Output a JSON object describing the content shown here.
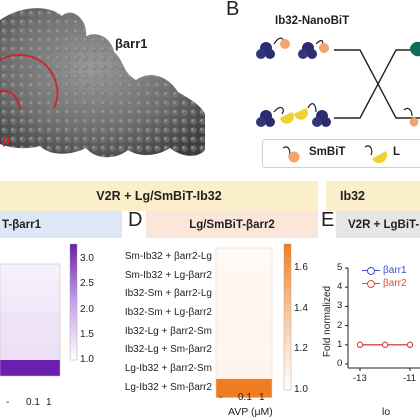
{
  "panels": {
    "b": "B",
    "d": "D",
    "e": "E"
  },
  "panel_a": {
    "protein_label": "βarr1",
    "partial_label": "p"
  },
  "panel_b": {
    "title": "Ib32-NanoBiT",
    "legend_smbit": "SmBiT",
    "legend_lg_partial": "L"
  },
  "bands": {
    "left": "V2R + Lg/SmBiT-Ib32",
    "right": "Ib32"
  },
  "subbands": {
    "c": "T-βarr1",
    "d": "Lg/SmBiT-βarr2",
    "e": "V2R + LgBiT-"
  },
  "colors": {
    "band": "#fbeecb",
    "sub_c": "#dde7f5",
    "sub_d": "#fbe7d9",
    "sub_e": "#e6e6e6",
    "purple": "#6a1fb0",
    "orange": "#ef7d22",
    "series_blue": "#3d4fd0",
    "series_red": "#e5463e"
  },
  "heatmap_c": {
    "colorbar_ticks": [
      "3.0",
      "2.5",
      "2.0",
      "1.5",
      "1.0"
    ],
    "x_ticks": [
      "-",
      "0.1",
      "1"
    ],
    "colorbar_range": [
      1.0,
      3.3
    ]
  },
  "heatmap_d": {
    "row_labels": [
      "Sm-Ib32 + βarr2-Lg",
      "Sm-Ib32 + Lg-βarr2",
      "Ib32-Sm + βarr2-Lg",
      "Ib32-Sm + Lg-βarr2",
      "Ib32-Lg + βarr2-Sm",
      "Ib32-Lg + Sm-βarr2",
      "Lg-Ib32 + βarr2-Sm",
      "Lg-Ib32 + Sm-βarr2"
    ],
    "x_ticks": [
      "-",
      "0.1",
      "1"
    ],
    "x_title": "AVP (μM)",
    "colorbar_ticks": [
      "1.6",
      "1.4",
      "1.2",
      "1.0"
    ],
    "colorbar_range": [
      1.0,
      1.72
    ]
  },
  "chart_data": {
    "type": "line",
    "ylabel": "Fold normalized",
    "xlabel": "lo",
    "x_ticks": [
      "-13",
      "-11"
    ],
    "y_ticks": [
      "5",
      "4",
      "3",
      "2",
      "1",
      "0"
    ],
    "ylim": [
      0,
      5
    ],
    "series": [
      {
        "name": "βarr1",
        "color": "#3d4fd0",
        "x": [
          -13,
          -12,
          -11
        ],
        "y": [
          1,
          1,
          1
        ]
      },
      {
        "name": "βarr2",
        "color": "#e5463e",
        "x": [
          -13,
          -12,
          -11
        ],
        "y": [
          1,
          1,
          1
        ]
      }
    ]
  }
}
